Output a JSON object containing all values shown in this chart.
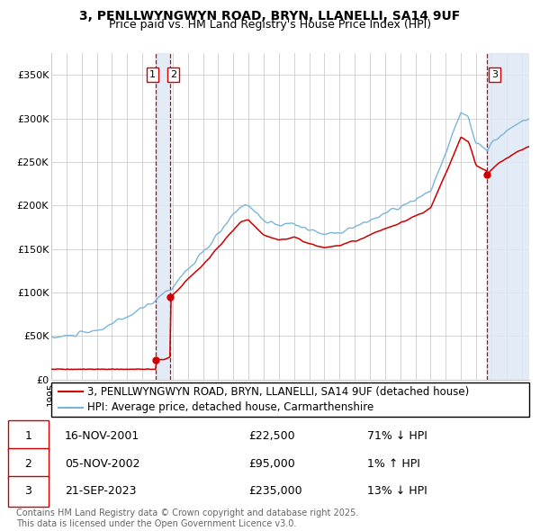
{
  "title": "3, PENLLWYNGWYN ROAD, BRYN, LLANELLI, SA14 9UF",
  "subtitle": "Price paid vs. HM Land Registry's House Price Index (HPI)",
  "ylabel_ticks": [
    "£0",
    "£50K",
    "£100K",
    "£150K",
    "£200K",
    "£250K",
    "£300K",
    "£350K"
  ],
  "ytick_values": [
    0,
    50000,
    100000,
    150000,
    200000,
    250000,
    300000,
    350000
  ],
  "ylim": [
    0,
    375000
  ],
  "xlim_start": 1995.0,
  "xlim_end": 2026.5,
  "purchase_dates": [
    2001.88,
    2002.84,
    2023.72
  ],
  "purchase_prices": [
    22500,
    95000,
    235000
  ],
  "purchase_labels": [
    "1",
    "2",
    "3"
  ],
  "vline_dates": [
    2001.88,
    2002.84,
    2023.72
  ],
  "hpi_color": "#7ab5d8",
  "price_color": "#cc0000",
  "vline_color": "#cc0000",
  "shading_color": "#dde8f5",
  "grid_color": "#cccccc",
  "background_color": "#ffffff",
  "legend_label_price": "3, PENLLWYNGWYN ROAD, BRYN, LLANELLI, SA14 9UF (detached house)",
  "legend_label_hpi": "HPI: Average price, detached house, Carmarthenshire",
  "table_rows": [
    [
      "1",
      "16-NOV-2001",
      "£22,500",
      "71% ↓ HPI"
    ],
    [
      "2",
      "05-NOV-2002",
      "£95,000",
      "1% ↑ HPI"
    ],
    [
      "3",
      "21-SEP-2023",
      "£235,000",
      "13% ↓ HPI"
    ]
  ],
  "footnote": "Contains HM Land Registry data © Crown copyright and database right 2025.\nThis data is licensed under the Open Government Licence v3.0.",
  "title_fontsize": 10,
  "subtitle_fontsize": 9,
  "tick_fontsize": 8,
  "legend_fontsize": 8.5,
  "table_fontsize": 9,
  "footnote_fontsize": 7
}
